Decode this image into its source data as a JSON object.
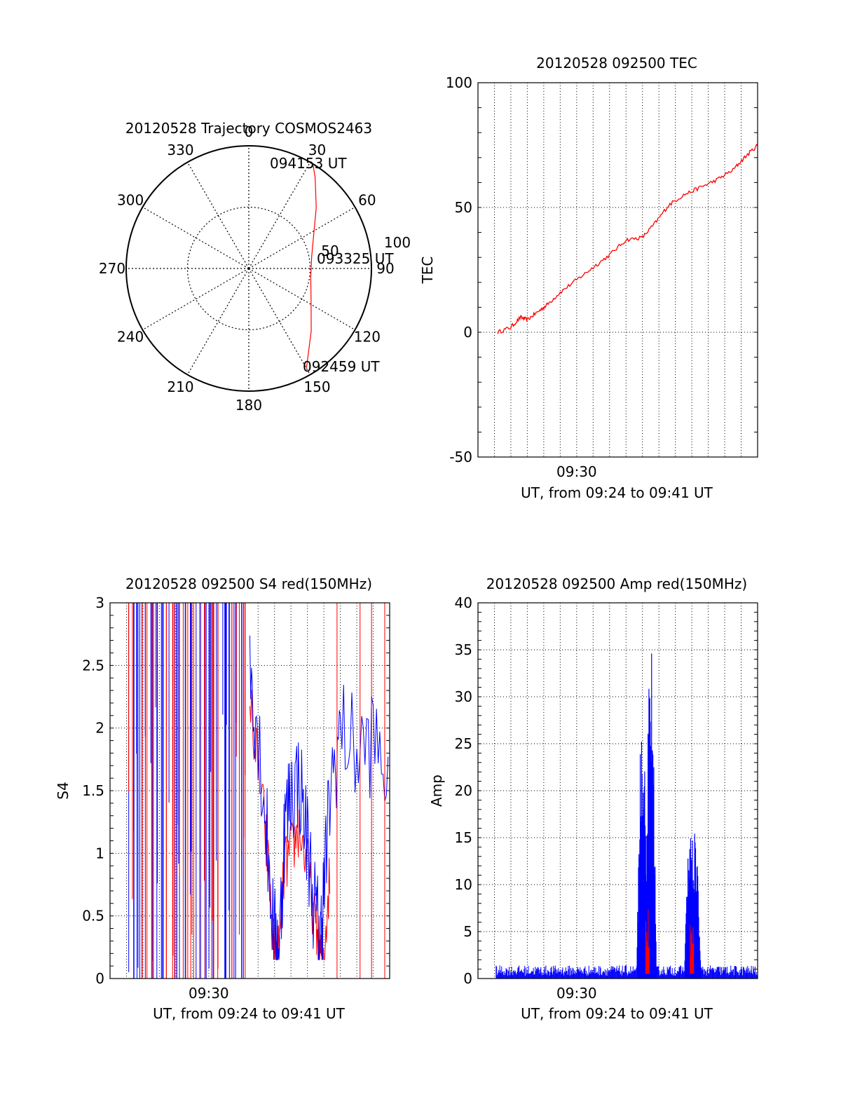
{
  "chart_data": [
    {
      "type": "polar",
      "title": "20120528 Trajectory COSMOS2463",
      "azimuth_labels": [
        "0",
        "30",
        "60",
        "90",
        "120",
        "150",
        "180",
        "210",
        "240",
        "270",
        "300",
        "330"
      ],
      "radius_labels": [
        "50",
        "100"
      ],
      "time_labels": {
        "start": "092459 UT",
        "middle": "093325 UT",
        "end": "094153 UT"
      },
      "trajectory": [
        {
          "az": 150,
          "r": 94
        },
        {
          "az": 135,
          "r": 72
        },
        {
          "az": 115,
          "r": 56
        },
        {
          "az": 98,
          "r": 51
        },
        {
          "az": 80,
          "r": 52
        },
        {
          "az": 62,
          "r": 60
        },
        {
          "az": 48,
          "r": 74
        },
        {
          "az": 36,
          "r": 92
        },
        {
          "az": 32,
          "r": 99
        }
      ],
      "series_color": "#ff0000"
    },
    {
      "type": "line",
      "title": "20120528 092500 TEC",
      "xlabel": "UT, from 09:24 to 09:41 UT",
      "ylabel": "TEC",
      "xtick_labels": [
        "09:30"
      ],
      "ytick_labels": [
        "-50",
        "0",
        "50",
        "100"
      ],
      "xlim_minutes": [
        0,
        17
      ],
      "ylim": [
        -50,
        100
      ],
      "grid": true,
      "series": [
        {
          "color": "#ff0000",
          "x": [
            1.2,
            2,
            2.6,
            3,
            3.6,
            4.2,
            5,
            6,
            7,
            8,
            9,
            10,
            10.8,
            11.6,
            12.5,
            13.5,
            14.5,
            15.5,
            16.2,
            17
          ],
          "y": [
            0,
            2,
            6,
            5,
            8,
            11,
            16,
            21,
            26,
            31,
            37,
            38,
            44,
            51,
            55,
            58,
            61,
            65,
            70,
            75
          ]
        }
      ]
    },
    {
      "type": "line",
      "title": "20120528 092500 S4 red(150MHz)",
      "xlabel": "UT, from 09:24 to 09:41 UT",
      "ylabel": "S4",
      "xtick_labels": [
        "09:30"
      ],
      "ytick_labels": [
        "0",
        "0.5",
        "1",
        "1.5",
        "2",
        "2.5",
        "3"
      ],
      "xlim_minutes": [
        0,
        17
      ],
      "ylim": [
        0,
        3
      ],
      "grid": true,
      "series": [
        {
          "color": "#ff0000",
          "x": [
            8.5,
            9.0,
            9.5,
            10.0,
            10.3,
            10.6,
            11.0,
            11.5,
            12.0,
            12.5,
            12.8,
            13.0,
            13.4
          ],
          "y": [
            2.2,
            1.7,
            1.1,
            0.22,
            0.2,
            0.9,
            1.0,
            1.2,
            0.9,
            0.4,
            0.2,
            0.2,
            0.9
          ]
        },
        {
          "color": "#0000ff",
          "x": [
            8.5,
            9.0,
            9.5,
            10.0,
            10.3,
            10.6,
            11.0,
            11.5,
            12.0,
            12.5,
            12.8,
            13.0,
            13.4,
            14.0,
            15.0,
            16.0,
            17.0
          ],
          "y": [
            2.5,
            2.0,
            1.2,
            0.3,
            0.25,
            1.2,
            1.5,
            1.6,
            1.1,
            0.5,
            0.3,
            0.7,
            1.5,
            2.0,
            1.8,
            1.9,
            1.6
          ]
        }
      ]
    },
    {
      "type": "line",
      "title": "20120528 092500 Amp red(150MHz)",
      "xlabel": "UT, from 09:24 to 09:41 UT",
      "ylabel": "Amp",
      "xtick_labels": [
        "09:30"
      ],
      "ytick_labels": [
        "0",
        "5",
        "10",
        "15",
        "20",
        "25",
        "30",
        "35",
        "40"
      ],
      "xlim_minutes": [
        0,
        17
      ],
      "ylim": [
        0,
        40
      ],
      "grid": true,
      "series": [
        {
          "color": "#ff0000",
          "peaks": [
            {
              "x": 10.3,
              "y": 8
            },
            {
              "x": 13.0,
              "y": 6
            }
          ]
        },
        {
          "color": "#0000ff",
          "baseline": 1,
          "peaks": [
            {
              "x": 10.0,
              "y": 30
            },
            {
              "x": 10.5,
              "y": 36.5
            },
            {
              "x": 12.9,
              "y": 18
            },
            {
              "x": 13.2,
              "y": 16.5
            }
          ]
        }
      ]
    }
  ]
}
